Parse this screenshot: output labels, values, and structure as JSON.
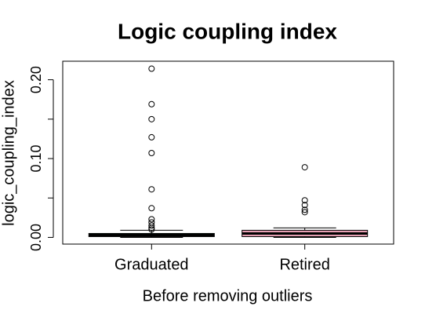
{
  "chart_data": {
    "type": "boxplot",
    "title": "Logic coupling index",
    "x_label": "Before removing outliers",
    "y_label": "logic_coupling_index",
    "categories": [
      "Graduated",
      "Retired"
    ],
    "boxes": [
      {
        "color": "#2e8b57",
        "whisker_low": 0.0,
        "q1": 0.001,
        "median": 0.003,
        "q3": 0.005,
        "whisker_high": 0.009,
        "outliers": [
          0.214,
          0.169,
          0.15,
          0.127,
          0.107,
          0.061,
          0.037,
          0.023,
          0.019,
          0.015,
          0.012,
          0.01
        ]
      },
      {
        "color": "#e8a0b4",
        "whisker_low": 0.0,
        "q1": 0.001,
        "median": 0.005,
        "q3": 0.009,
        "whisker_high": 0.012,
        "outliers": [
          0.089,
          0.047,
          0.041,
          0.035,
          0.032
        ]
      }
    ],
    "ylim": [
      -0.0085,
      0.2235
    ],
    "yticks": [
      {
        "value": 0,
        "label": "0.00"
      },
      {
        "value": 0.05,
        "label": null
      },
      {
        "value": 0.1,
        "label": "0.10"
      },
      {
        "value": 0.15,
        "label": null
      },
      {
        "value": 0.2,
        "label": "0.20"
      }
    ]
  }
}
